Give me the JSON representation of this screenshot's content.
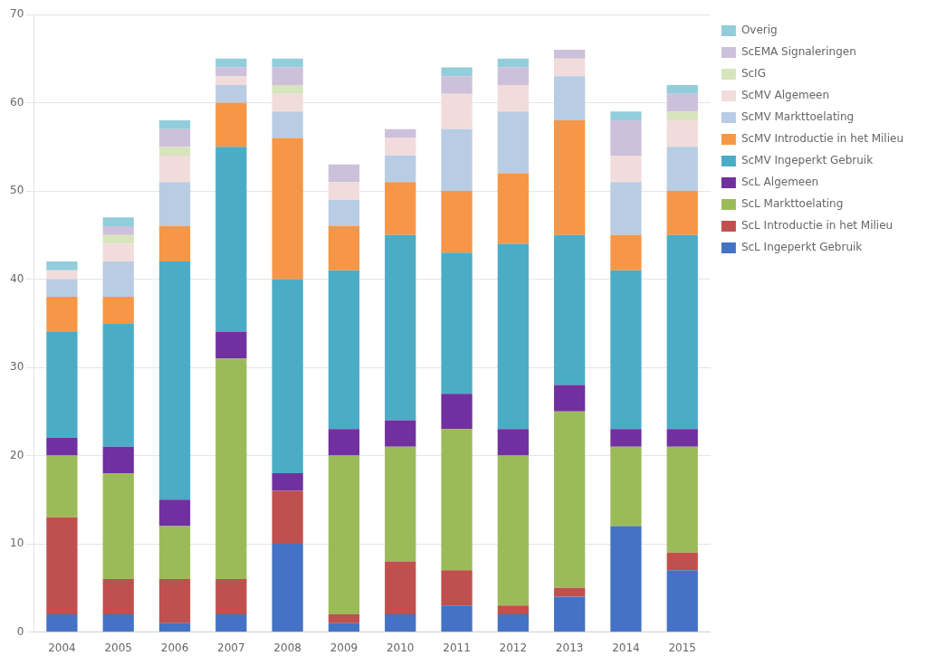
{
  "chart_data": {
    "type": "bar",
    "stacked": true,
    "categories": [
      "2004",
      "2005",
      "2006",
      "2007",
      "2008",
      "2009",
      "2010",
      "2011",
      "2012",
      "2013",
      "2014",
      "2015"
    ],
    "series": [
      {
        "name": "ScL Ingeperkt Gebruik",
        "color": "#4472C4",
        "values": [
          2,
          2,
          1,
          2,
          10,
          1,
          2,
          3,
          2,
          4,
          12,
          7
        ]
      },
      {
        "name": "ScL Introductie in het Milieu",
        "color": "#C0504D",
        "values": [
          11,
          4,
          5,
          4,
          6,
          1,
          6,
          4,
          1,
          1,
          0,
          2
        ]
      },
      {
        "name": "ScL Markttoelating",
        "color": "#9BBB59",
        "values": [
          7,
          12,
          6,
          25,
          0,
          18,
          13,
          16,
          17,
          20,
          9,
          12
        ]
      },
      {
        "name": "ScL Algemeen",
        "color": "#7030A0",
        "values": [
          2,
          3,
          3,
          3,
          2,
          3,
          3,
          4,
          3,
          3,
          2,
          2
        ]
      },
      {
        "name": "ScMV Ingeperkt Gebruik",
        "color": "#4BACC6",
        "values": [
          12,
          14,
          27,
          21,
          22,
          18,
          21,
          16,
          21,
          17,
          18,
          22
        ]
      },
      {
        "name": "ScMV Introductie in het Milieu",
        "color": "#F79646",
        "values": [
          4,
          3,
          4,
          5,
          16,
          5,
          6,
          7,
          8,
          13,
          4,
          5
        ]
      },
      {
        "name": "ScMV Markttoelating",
        "color": "#B8CCE4",
        "values": [
          2,
          4,
          5,
          2,
          3,
          3,
          3,
          7,
          7,
          5,
          6,
          5
        ]
      },
      {
        "name": "ScMV Algemeen",
        "color": "#F2DCDB",
        "values": [
          1,
          2,
          3,
          1,
          2,
          2,
          2,
          4,
          3,
          2,
          3,
          3
        ]
      },
      {
        "name": "ScIG",
        "color": "#D7E4BC",
        "values": [
          0,
          1,
          1,
          0,
          1,
          0,
          0,
          0,
          0,
          0,
          0,
          1
        ]
      },
      {
        "name": "ScEMA Signaleringen",
        "color": "#CCC0DA",
        "values": [
          0,
          1,
          2,
          1,
          2,
          2,
          1,
          2,
          2,
          1,
          4,
          2
        ]
      },
      {
        "name": "Overig",
        "color": "#92CDDC",
        "values": [
          1,
          1,
          1,
          1,
          1,
          0,
          0,
          1,
          1,
          0,
          1,
          1
        ]
      }
    ],
    "ylim": [
      0,
      70
    ],
    "yticks": [
      0,
      10,
      20,
      30,
      40,
      50,
      60,
      70
    ],
    "grid": true,
    "legend": "right"
  }
}
